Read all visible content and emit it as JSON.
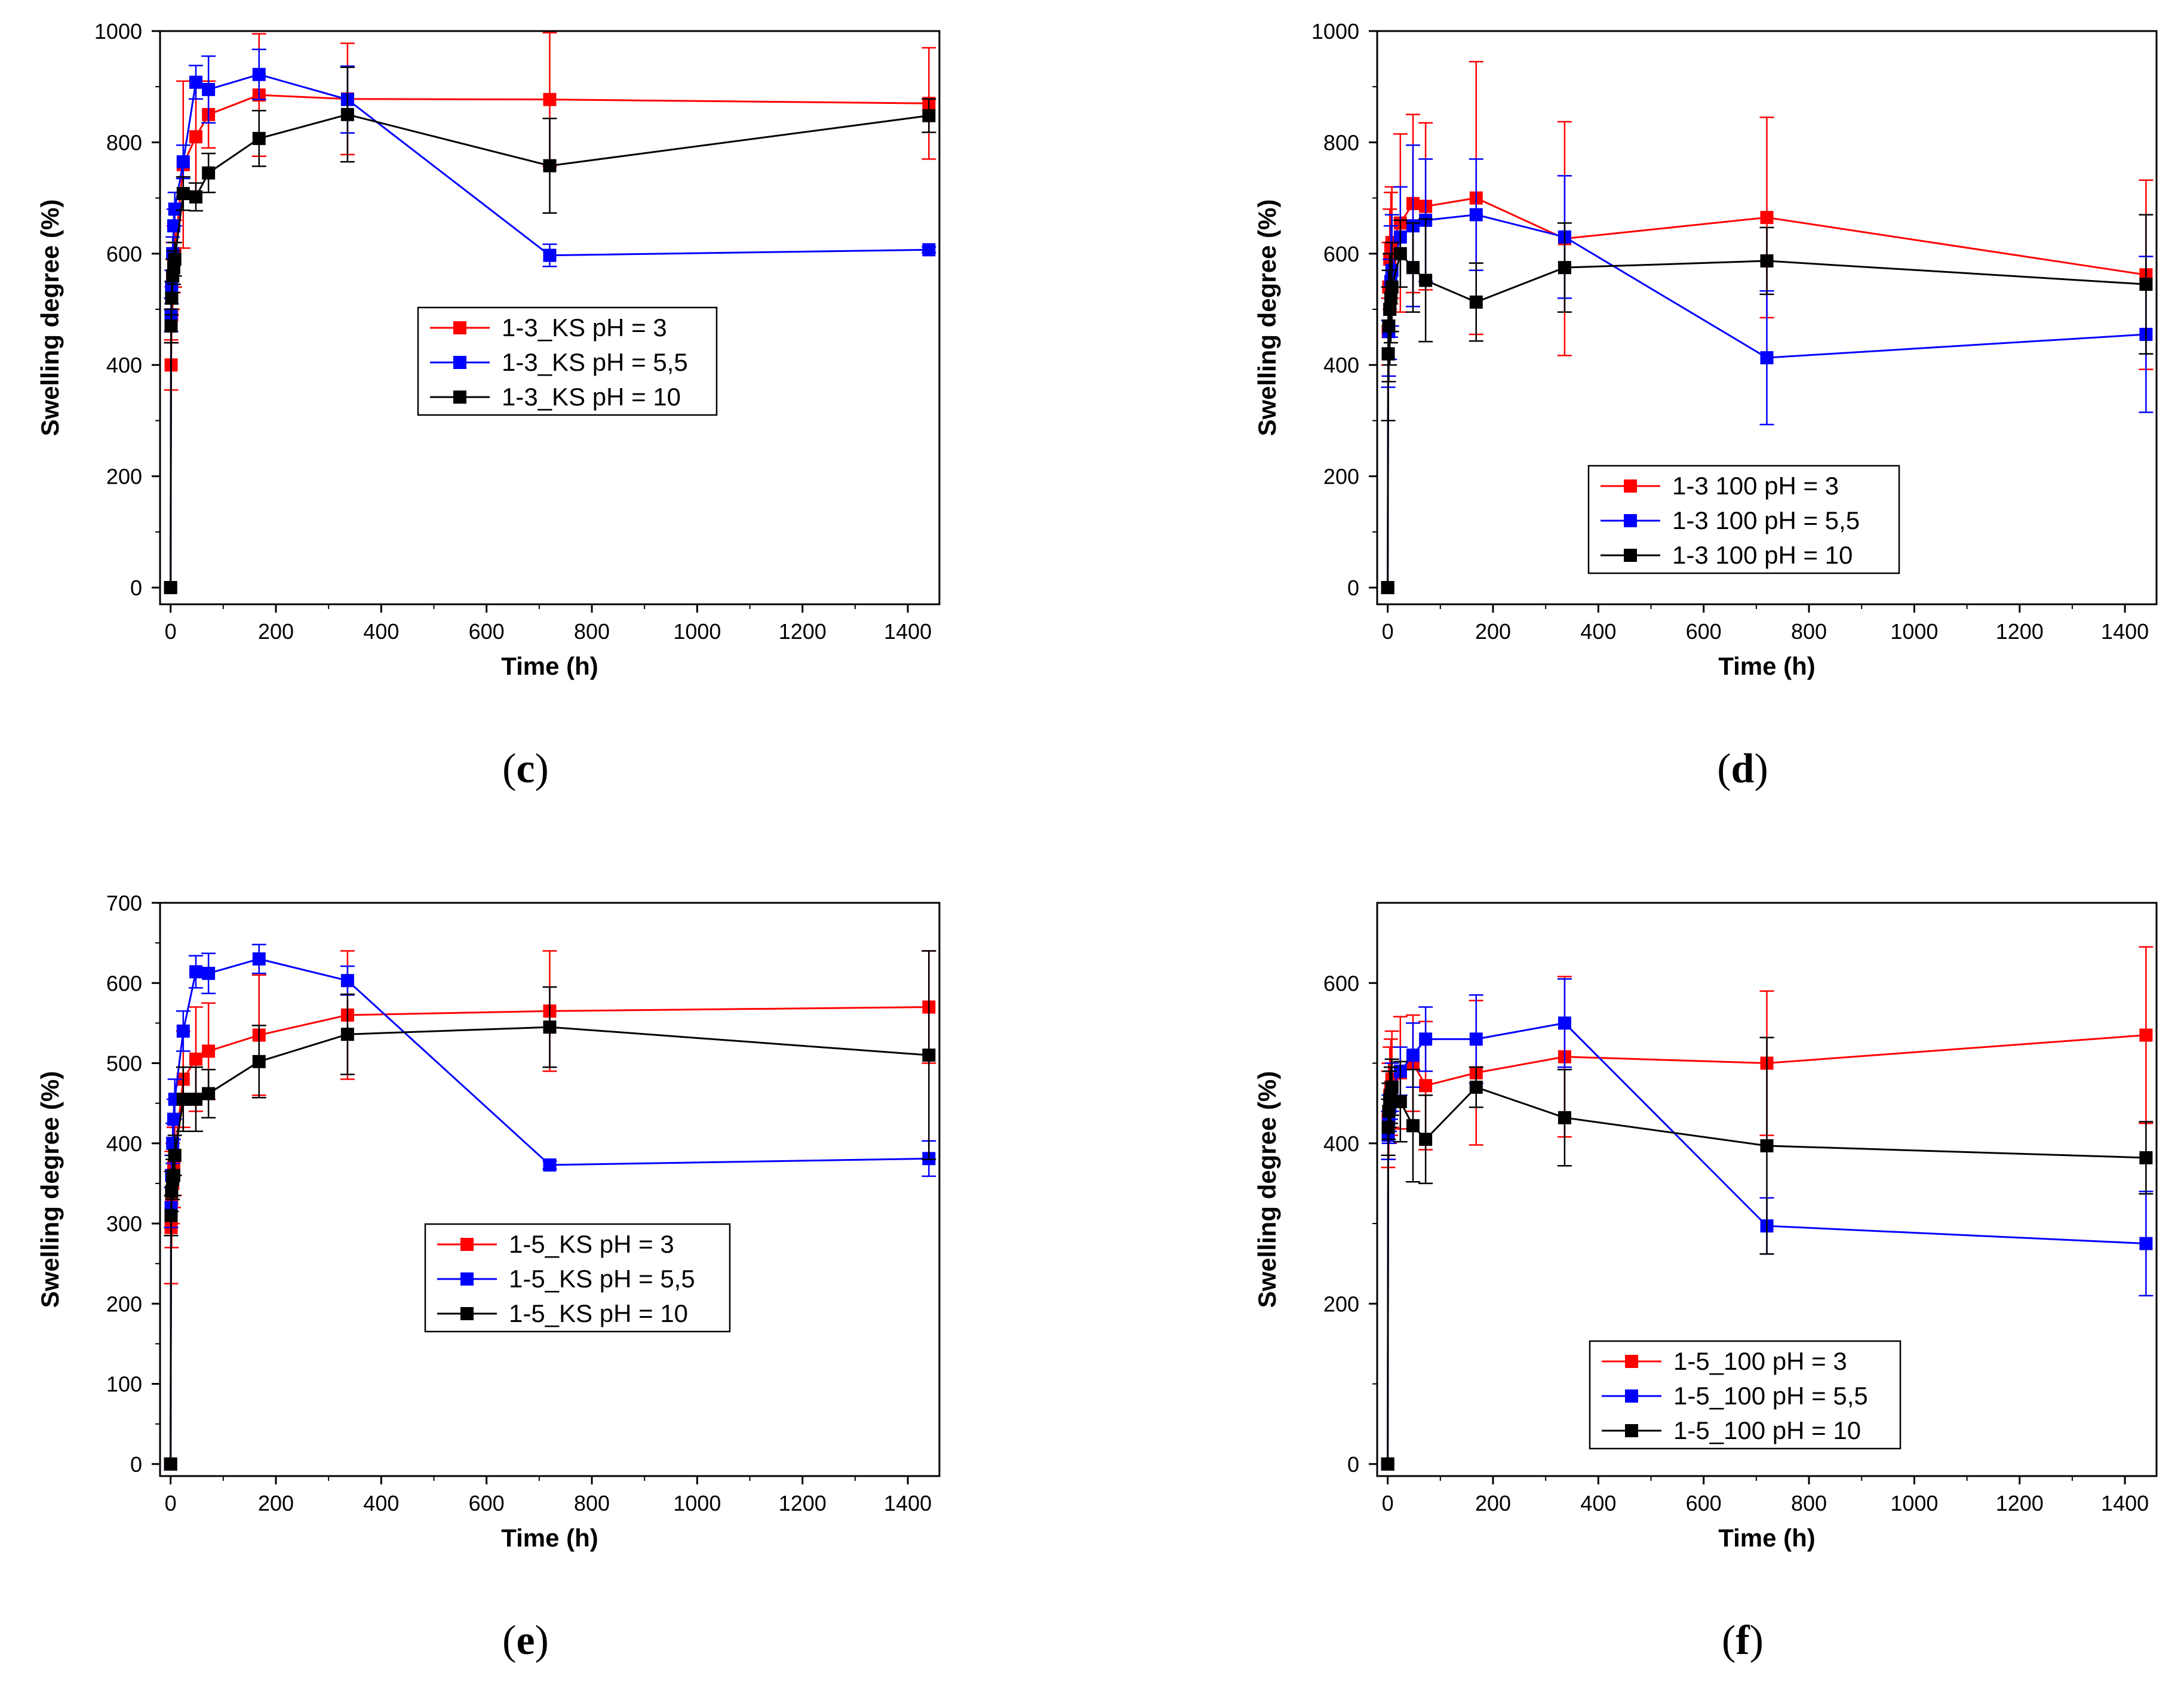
{
  "chart_data": [
    {
      "type": "line",
      "panel_label": "c",
      "xlabel": "Time (h)",
      "ylabel": "Swelling degree (%)",
      "xlim": [
        -20,
        1460
      ],
      "ylim": [
        -30,
        1000
      ],
      "xticks": [
        0,
        200,
        400,
        600,
        800,
        1000,
        1200,
        1400
      ],
      "yticks": [
        0,
        200,
        400,
        600,
        800,
        1000
      ],
      "series": [
        {
          "name": "1-3_KS pH = 3",
          "color": "#ff0000",
          "x": [
            0,
            1,
            2,
            4,
            6,
            8,
            24,
            48,
            72,
            168,
            336,
            720,
            1440
          ],
          "y": [
            0,
            400,
            490,
            560,
            590,
            600,
            760,
            810,
            850,
            885,
            878,
            877,
            870
          ],
          "err": [
            0,
            45,
            50,
            60,
            60,
            60,
            150,
            100,
            60,
            110,
            100,
            120,
            100
          ]
        },
        {
          "name": "1-3_KS pH = 5,5",
          "color": "#0000ff",
          "x": [
            0,
            1,
            2,
            4,
            6,
            8,
            24,
            48,
            72,
            168,
            336,
            720,
            1440
          ],
          "y": [
            0,
            490,
            540,
            600,
            650,
            680,
            765,
            908,
            895,
            922,
            877,
            597,
            607
          ],
          "err": [
            0,
            30,
            30,
            30,
            30,
            30,
            30,
            30,
            60,
            45,
            60,
            20,
            5
          ]
        },
        {
          "name": "1-3_KS pH = 10",
          "color": "#000000",
          "x": [
            0,
            1,
            2,
            4,
            6,
            8,
            24,
            48,
            72,
            168,
            336,
            720,
            1440
          ],
          "y": [
            0,
            470,
            520,
            560,
            575,
            590,
            708,
            702,
            745,
            807,
            850,
            758,
            848
          ],
          "err": [
            0,
            30,
            30,
            30,
            30,
            30,
            30,
            25,
            35,
            50,
            85,
            85,
            30
          ]
        }
      ],
      "legend": [
        "1-3_KS pH = 3",
        "1-3_KS pH = 5,5",
        "1-3_KS pH = 10"
      ]
    },
    {
      "type": "line",
      "panel_label": "d",
      "xlabel": "Time (h)",
      "ylabel": "Swelling degree (%)",
      "xlim": [
        -20,
        1460
      ],
      "ylim": [
        -30,
        1000
      ],
      "xticks": [
        0,
        200,
        400,
        600,
        800,
        1000,
        1200,
        1400
      ],
      "yticks": [
        0,
        200,
        400,
        600,
        800,
        1000
      ],
      "series": [
        {
          "name": "1-3 100 pH = 3",
          "color": "#ff0000",
          "x": [
            0,
            1,
            2,
            4,
            6,
            8,
            24,
            48,
            72,
            168,
            336,
            720,
            1440
          ],
          "y": [
            0,
            460,
            540,
            590,
            610,
            620,
            655,
            690,
            685,
            700,
            627,
            665,
            562
          ],
          "err": [
            0,
            60,
            80,
            90,
            100,
            100,
            160,
            160,
            150,
            245,
            210,
            180,
            170
          ]
        },
        {
          "name": "1-3 100 pH = 5,5",
          "color": "#0000ff",
          "x": [
            0,
            1,
            2,
            4,
            6,
            8,
            24,
            48,
            72,
            168,
            336,
            720,
            1440
          ],
          "y": [
            0,
            420,
            460,
            500,
            550,
            570,
            630,
            650,
            660,
            670,
            630,
            413,
            455
          ],
          "err": [
            0,
            60,
            80,
            90,
            100,
            100,
            90,
            145,
            110,
            100,
            110,
            120,
            140
          ]
        },
        {
          "name": "1-3 100 pH = 10",
          "color": "#000000",
          "x": [
            0,
            1,
            2,
            4,
            6,
            8,
            24,
            48,
            72,
            168,
            336,
            720,
            1440
          ],
          "y": [
            0,
            420,
            470,
            500,
            520,
            540,
            600,
            575,
            552,
            513,
            575,
            587,
            545
          ],
          "err": [
            0,
            120,
            100,
            100,
            80,
            80,
            60,
            80,
            110,
            70,
            80,
            60,
            125
          ]
        }
      ],
      "legend": [
        "1-3 100 pH = 3",
        "1-3 100 pH = 5,5",
        "1-3 100 pH = 10"
      ]
    },
    {
      "type": "line",
      "panel_label": "e",
      "xlabel": "Time (h)",
      "ylabel": "Swelling degree (%)",
      "xlim": [
        -20,
        1460
      ],
      "ylim": [
        -15,
        700
      ],
      "xticks": [
        0,
        200,
        400,
        600,
        800,
        1000,
        1200,
        1400
      ],
      "yticks": [
        0,
        100,
        200,
        300,
        400,
        500,
        600,
        700
      ],
      "series": [
        {
          "name": "1-5_KS pH = 3",
          "color": "#ff0000",
          "x": [
            0,
            1,
            2,
            4,
            6,
            8,
            24,
            48,
            72,
            168,
            336,
            720,
            1440
          ],
          "y": [
            0,
            295,
            330,
            350,
            370,
            385,
            480,
            505,
            515,
            535,
            560,
            565,
            570
          ],
          "err": [
            0,
            70,
            60,
            50,
            50,
            50,
            60,
            65,
            60,
            75,
            80,
            75,
            70
          ]
        },
        {
          "name": "1-5_KS pH = 5,5",
          "color": "#0000ff",
          "x": [
            0,
            1,
            2,
            4,
            6,
            8,
            24,
            48,
            72,
            168,
            336,
            720,
            1440
          ],
          "y": [
            0,
            320,
            360,
            400,
            430,
            455,
            540,
            614,
            612,
            630,
            603,
            373,
            381
          ],
          "err": [
            0,
            25,
            25,
            25,
            25,
            25,
            25,
            20,
            25,
            18,
            18,
            5,
            22
          ]
        },
        {
          "name": "1-5_KS pH = 10",
          "color": "#000000",
          "x": [
            0,
            1,
            2,
            4,
            6,
            8,
            24,
            48,
            72,
            168,
            336,
            720,
            1440
          ],
          "y": [
            0,
            310,
            340,
            355,
            360,
            385,
            455,
            455,
            462,
            502,
            536,
            545,
            510
          ],
          "err": [
            0,
            25,
            25,
            25,
            25,
            25,
            40,
            40,
            30,
            45,
            50,
            50,
            130
          ]
        }
      ],
      "legend": [
        "1-5_KS pH = 3",
        "1-5_KS pH = 5,5",
        "1-5_KS pH = 10"
      ]
    },
    {
      "type": "line",
      "panel_label": "f",
      "xlabel": "Time (h)",
      "ylabel": "Swelling degree (%)",
      "xlim": [
        -20,
        1460
      ],
      "ylim": [
        -15,
        700
      ],
      "xticks": [
        0,
        200,
        400,
        600,
        800,
        1000,
        1200,
        1400
      ],
      "yticks": [
        0,
        200,
        400,
        600
      ],
      "series": [
        {
          "name": "1-5_100 pH = 3",
          "color": "#ff0000",
          "x": [
            0,
            1,
            2,
            4,
            6,
            8,
            24,
            48,
            72,
            168,
            336,
            720,
            1440
          ],
          "y": [
            0,
            430,
            440,
            460,
            470,
            480,
            488,
            500,
            472,
            488,
            508,
            500,
            535
          ],
          "err": [
            0,
            60,
            60,
            60,
            60,
            60,
            70,
            60,
            80,
            90,
            100,
            90,
            110
          ]
        },
        {
          "name": "1-5_100 pH = 5,5",
          "color": "#0000ff",
          "x": [
            0,
            1,
            2,
            4,
            6,
            8,
            24,
            48,
            72,
            168,
            336,
            720,
            1440
          ],
          "y": [
            0,
            410,
            430,
            445,
            460,
            470,
            490,
            510,
            530,
            530,
            550,
            297,
            275
          ],
          "err": [
            0,
            30,
            30,
            30,
            30,
            30,
            30,
            40,
            40,
            55,
            55,
            35,
            65
          ]
        },
        {
          "name": "1-5_100 pH = 10",
          "color": "#000000",
          "x": [
            0,
            1,
            2,
            4,
            6,
            8,
            24,
            48,
            72,
            168,
            336,
            720,
            1440
          ],
          "y": [
            0,
            420,
            440,
            455,
            460,
            470,
            452,
            422,
            405,
            470,
            432,
            397,
            382
          ],
          "err": [
            0,
            35,
            35,
            35,
            35,
            35,
            50,
            70,
            55,
            25,
            60,
            135,
            45
          ]
        }
      ],
      "legend": [
        "1-5_100 pH = 3",
        "1-5_100 pH = 5,5",
        "1-5_100 pH = 10"
      ]
    }
  ]
}
